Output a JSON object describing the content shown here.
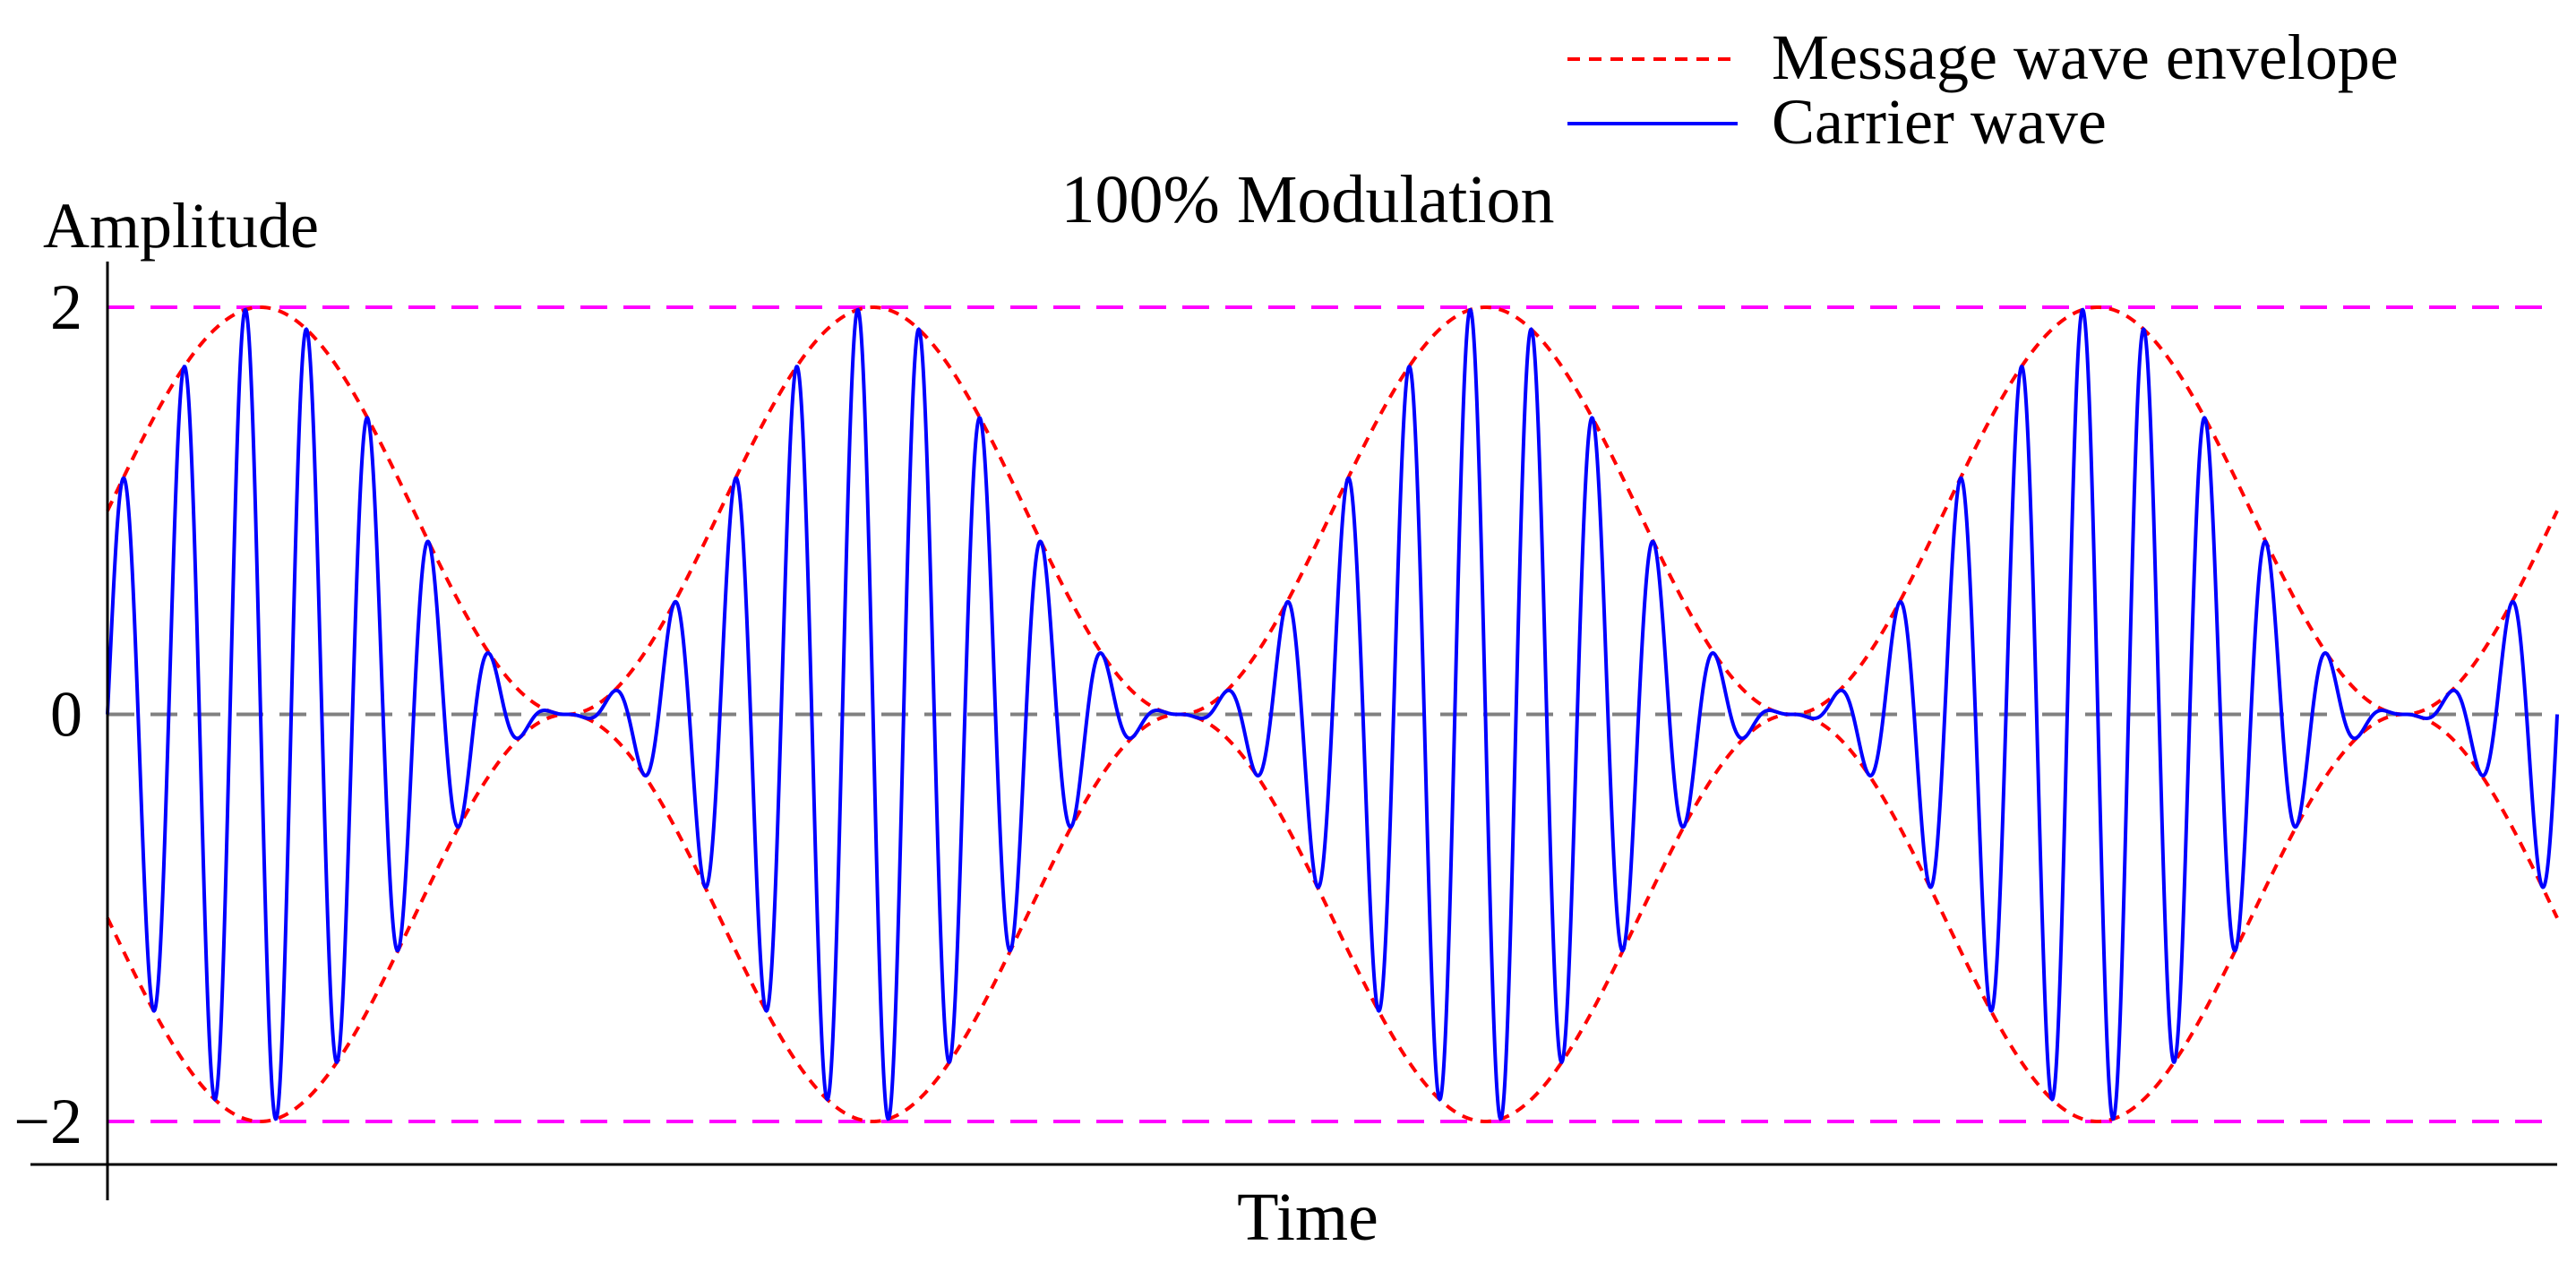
{
  "chart_data": {
    "type": "line",
    "title": "100% Modulation",
    "xlabel": "Time",
    "ylabel": "Amplitude",
    "ylim": [
      -2.2,
      2.2
    ],
    "xlim": [
      0,
      4
    ],
    "yticks": [
      {
        "value": 2,
        "label": "2"
      },
      {
        "value": 0,
        "label": "0"
      },
      {
        "value": -2,
        "label": "−2"
      }
    ],
    "reference_lines": [
      {
        "y": 2,
        "color": "#ff00ff",
        "style": "dashed"
      },
      {
        "y": -2,
        "color": "#ff00ff",
        "style": "dashed"
      },
      {
        "y": 0,
        "color": "#808080",
        "style": "dashed"
      }
    ],
    "series": [
      {
        "name": "Message wave envelope",
        "color": "#ff0000",
        "style": "dotted",
        "function": "±(1 + sin(2πt))",
        "message_cycles": 4,
        "envelope_start": 1,
        "envelope_peak": 2,
        "envelope_min": 0
      },
      {
        "name": "Carrier wave",
        "color": "#0000ff",
        "style": "solid",
        "function": "(1 + sin(2πt)) · sin(2π·10t)",
        "carrier_cycles_per_message_cycle": 10
      }
    ],
    "legend_position": "top-right",
    "grid": false
  }
}
